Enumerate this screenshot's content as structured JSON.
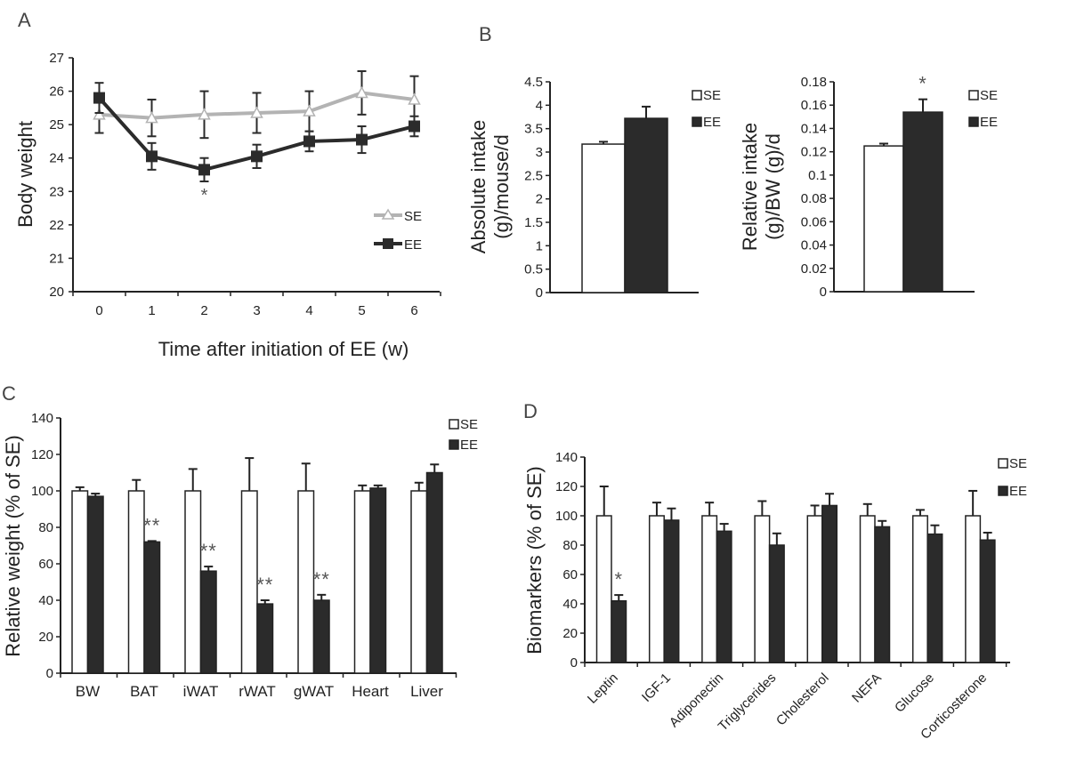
{
  "panels": {
    "A": "A",
    "B": "B",
    "C": "C",
    "D": "D"
  },
  "chart_data": [
    {
      "id": "A",
      "type": "line",
      "title": "",
      "xlabel": "Time after initiation of EE (w)",
      "ylabel": "Body weight",
      "x": [
        0,
        1,
        2,
        3,
        4,
        5,
        6
      ],
      "x_ticks": [
        "0",
        "1",
        "2",
        "3",
        "4",
        "5",
        "6"
      ],
      "ylim": [
        20,
        27
      ],
      "y_ticks": [
        "20",
        "21",
        "22",
        "23",
        "24",
        "25",
        "26",
        "27"
      ],
      "grid": false,
      "legend_position": "bottom-right",
      "series": [
        {
          "name": "SE",
          "color": "#b3b3b3",
          "marker": "triangle-open",
          "values": [
            25.3,
            25.2,
            25.3,
            25.35,
            25.4,
            25.95,
            25.75
          ],
          "errors": [
            0.55,
            0.55,
            0.7,
            0.6,
            0.6,
            0.65,
            0.7
          ]
        },
        {
          "name": "EE",
          "color": "#2b2b2b",
          "marker": "square",
          "values": [
            25.8,
            24.05,
            23.65,
            24.05,
            24.5,
            24.55,
            24.95
          ],
          "errors": [
            0.45,
            0.4,
            0.35,
            0.35,
            0.3,
            0.4,
            0.3
          ]
        }
      ],
      "annotations": [
        {
          "x": 2,
          "text": "*"
        }
      ]
    },
    {
      "id": "B1",
      "type": "bar",
      "xlabel": "",
      "ylabel": "Absolute intake (g)/mouse/d",
      "ylabel_lines": [
        "Absolute intake",
        "(g)/mouse/d"
      ],
      "ylim": [
        0,
        4.5
      ],
      "y_ticks": [
        "0",
        "0.5",
        "1",
        "1.5",
        "2",
        "2.5",
        "3",
        "3.5",
        "4",
        "4.5"
      ],
      "categories": [
        ""
      ],
      "legend_position": "top-right",
      "series": [
        {
          "name": "SE",
          "color": "#ffffff",
          "values": [
            3.17
          ],
          "errors": [
            0.05
          ]
        },
        {
          "name": "EE",
          "color": "#2b2b2b",
          "values": [
            3.72
          ],
          "errors": [
            0.25
          ]
        }
      ],
      "annotations": []
    },
    {
      "id": "B2",
      "type": "bar",
      "xlabel": "",
      "ylabel": "Relative intake (g)/BW (g)/d",
      "ylabel_lines": [
        "Relative intake",
        "(g)/BW (g)/d"
      ],
      "ylim": [
        0,
        0.18
      ],
      "y_ticks": [
        "0",
        "0.02",
        "0.04",
        "0.06",
        "0.08",
        "0.1",
        "0.12",
        "0.14",
        "0.16",
        "0.18"
      ],
      "categories": [
        ""
      ],
      "legend_position": "top-right",
      "series": [
        {
          "name": "SE",
          "color": "#ffffff",
          "values": [
            0.125
          ],
          "errors": [
            0.002
          ]
        },
        {
          "name": "EE",
          "color": "#2b2b2b",
          "values": [
            0.154
          ],
          "errors": [
            0.011
          ]
        }
      ],
      "annotations": [
        {
          "series": "EE",
          "index": 0,
          "text": "*"
        }
      ]
    },
    {
      "id": "C",
      "type": "bar",
      "xlabel": "",
      "ylabel": "Relative weight (% of SE)",
      "ylim": [
        0,
        140
      ],
      "y_ticks": [
        "0",
        "20",
        "40",
        "60",
        "80",
        "100",
        "120",
        "140"
      ],
      "categories": [
        "BW",
        "BAT",
        "iWAT",
        "rWAT",
        "gWAT",
        "Heart",
        "Liver"
      ],
      "legend_position": "top-right",
      "series": [
        {
          "name": "SE",
          "color": "#ffffff",
          "values": [
            100,
            100,
            100,
            100,
            100,
            100,
            100
          ],
          "errors": [
            2,
            6,
            12,
            18,
            15,
            3,
            4.5
          ]
        },
        {
          "name": "EE",
          "color": "#2b2b2b",
          "values": [
            97,
            72,
            56,
            38,
            40,
            101.5,
            110
          ],
          "errors": [
            1.5,
            0.5,
            2.5,
            2,
            3,
            1.5,
            4.5
          ]
        }
      ],
      "annotations": [
        {
          "series": "EE",
          "index": 1,
          "text": "**"
        },
        {
          "series": "EE",
          "index": 2,
          "text": "**"
        },
        {
          "series": "EE",
          "index": 3,
          "text": "**"
        },
        {
          "series": "EE",
          "index": 4,
          "text": "**"
        }
      ]
    },
    {
      "id": "D",
      "type": "bar",
      "xlabel": "",
      "ylabel": "Biomarkers (% of SE)",
      "ylim": [
        0,
        140
      ],
      "y_ticks": [
        "0",
        "20",
        "40",
        "60",
        "80",
        "100",
        "120",
        "140"
      ],
      "categories": [
        "Leptin",
        "IGF-1",
        "Adiponectin",
        "Triglycerides",
        "Cholesterol",
        "NEFA",
        "Glucose",
        "Corticosterone"
      ],
      "legend_position": "top-right",
      "series": [
        {
          "name": "SE",
          "color": "#ffffff",
          "values": [
            100,
            100,
            100,
            100,
            100,
            100,
            100,
            100
          ],
          "errors": [
            20,
            9,
            9,
            10,
            7,
            8,
            4,
            17
          ]
        },
        {
          "name": "EE",
          "color": "#2b2b2b",
          "values": [
            42,
            97,
            89.5,
            80,
            107,
            92.5,
            87.5,
            83.5
          ],
          "errors": [
            4,
            8,
            5,
            8,
            8,
            4,
            6,
            5
          ]
        }
      ],
      "annotations": [
        {
          "series": "EE",
          "index": 0,
          "text": "*"
        }
      ]
    }
  ]
}
